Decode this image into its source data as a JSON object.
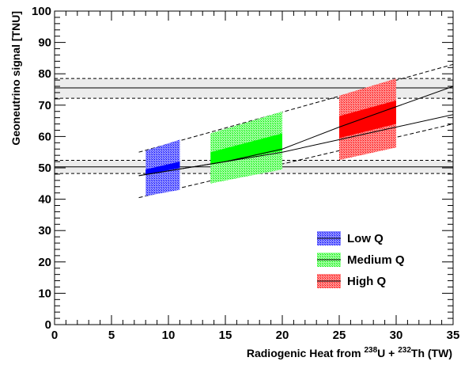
{
  "chart_data": {
    "type": "area",
    "title": "",
    "xlabel": {
      "main": "Radiogenic Heat from ",
      "sup1": "238",
      "mid": "U + ",
      "sup2": "232",
      "end": "Th (TW)"
    },
    "ylabel": "Geoneutrino signal [TNU]",
    "xlim": [
      0,
      35
    ],
    "ylim": [
      0,
      100
    ],
    "x_ticks": [
      {
        "value": 0,
        "label": "0"
      },
      {
        "value": 5,
        "label": "5"
      },
      {
        "value": 10,
        "label": "10"
      },
      {
        "value": 15,
        "label": "15"
      },
      {
        "value": 20,
        "label": "20"
      },
      {
        "value": 25,
        "label": "25"
      },
      {
        "value": 30,
        "label": "30"
      },
      {
        "value": 35,
        "label": "35"
      }
    ],
    "y_ticks": [
      {
        "value": 0,
        "label": "0"
      },
      {
        "value": 10,
        "label": "10"
      },
      {
        "value": 20,
        "label": "20"
      },
      {
        "value": 30,
        "label": "30"
      },
      {
        "value": 40,
        "label": "40"
      },
      {
        "value": 50,
        "label": "50"
      },
      {
        "value": 60,
        "label": "60"
      },
      {
        "value": 70,
        "label": "70"
      },
      {
        "value": 80,
        "label": "80"
      },
      {
        "value": 90,
        "label": "90"
      },
      {
        "value": 100,
        "label": "100"
      }
    ],
    "grid": false,
    "legend_position": "bottom-right",
    "horizontal_bands": [
      {
        "center": 75.5,
        "low": 72.2,
        "high": 78.5
      },
      {
        "center": 50.3,
        "low": 48.2,
        "high": 52.4
      }
    ],
    "envelope": {
      "upper": [
        [
          7.4,
          55.0
        ],
        [
          35,
          83.0
        ]
      ],
      "lower": [
        [
          7.4,
          40.5
        ],
        [
          35,
          64.0
        ]
      ]
    },
    "center_lines": [
      {
        "points": [
          [
            7.4,
            47.5
          ],
          [
            15,
            52.0
          ],
          [
            20,
            56.0
          ],
          [
            25,
            63.0
          ],
          [
            30,
            69.5
          ],
          [
            35,
            76.0
          ]
        ]
      },
      {
        "points": [
          [
            7.4,
            47.5
          ],
          [
            15,
            52.0
          ],
          [
            20,
            55.0
          ],
          [
            25,
            59.0
          ],
          [
            30,
            63.0
          ],
          [
            35,
            67.0
          ]
        ]
      }
    ],
    "series": [
      {
        "name": "Low Q",
        "color": "#0000ff",
        "x_range": [
          8,
          11
        ],
        "band": {
          "low": [
            41.0,
            43.0
          ],
          "high": [
            55.5,
            59.0
          ]
        },
        "core": {
          "low": [
            47.8,
            50.0
          ],
          "high": [
            49.5,
            52.0
          ]
        }
      },
      {
        "name": "Medium Q",
        "color": "#00ff00",
        "x_range": [
          13.7,
          20
        ],
        "band": {
          "low": [
            45.0,
            49.5
          ],
          "high": [
            61.0,
            68.0
          ]
        },
        "core": {
          "low": [
            51.0,
            55.5
          ],
          "high": [
            55.0,
            61.0
          ]
        }
      },
      {
        "name": "High Q",
        "color": "#ff0000",
        "x_range": [
          25,
          30
        ],
        "band": {
          "low": [
            52.5,
            56.5
          ],
          "high": [
            73.0,
            78.5
          ]
        },
        "core": {
          "low": [
            59.5,
            64.0
          ],
          "high": [
            66.5,
            71.5
          ]
        }
      }
    ]
  }
}
